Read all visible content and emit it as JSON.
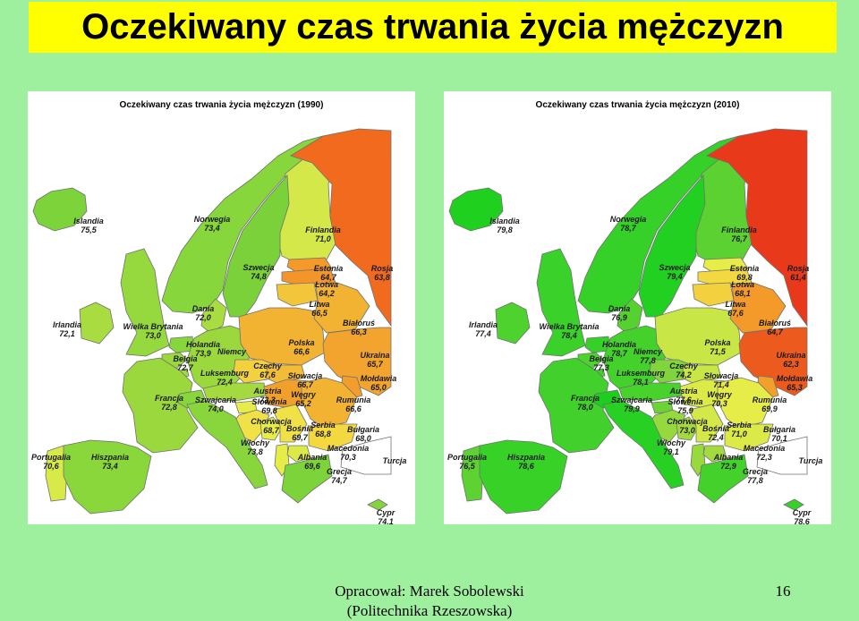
{
  "header": {
    "title": "Oczekiwany czas trwania życia mężczyzn"
  },
  "maps": [
    {
      "title": "Oczekiwany czas trwania życia mężczyzn (1990)",
      "countries": [
        {
          "name": "Islandia",
          "value": "75,5",
          "color": "#7cd33a"
        },
        {
          "name": "Norwegia",
          "value": "73,4",
          "color": "#86d63c"
        },
        {
          "name": "Finlandia",
          "value": "71,0",
          "color": "#d4e84a"
        },
        {
          "name": "Szwecja",
          "value": "74,8",
          "color": "#7ad13a"
        },
        {
          "name": "Estonia",
          "value": "64,7",
          "color": "#f39a2a"
        },
        {
          "name": "Łotwa",
          "value": "64,2",
          "color": "#f3952a"
        },
        {
          "name": "Litwa",
          "value": "66,5",
          "color": "#f2c53a"
        },
        {
          "name": "Rosja",
          "value": "63,8",
          "color": "#f26a1e"
        },
        {
          "name": "Dania",
          "value": "72,0",
          "color": "#a8dc40"
        },
        {
          "name": "Irlandia",
          "value": "72,1",
          "color": "#a8dc40"
        },
        {
          "name": "Wielka Brytania",
          "value": "73,0",
          "color": "#96d93e"
        },
        {
          "name": "Holandia",
          "value": "73,9",
          "color": "#86d63c"
        },
        {
          "name": "Niemcy",
          "value": "",
          "color": "#9ad83e"
        },
        {
          "name": "Belgia",
          "value": "72,7",
          "color": "#9ad83e"
        },
        {
          "name": "Luksemburg",
          "value": "72,4",
          "color": "#a4da40"
        },
        {
          "name": "Polska",
          "value": "66,6",
          "color": "#f2b232"
        },
        {
          "name": "Białoruś",
          "value": "66,3",
          "color": "#f2b232"
        },
        {
          "name": "Ukraina",
          "value": "65,7",
          "color": "#f2a42e"
        },
        {
          "name": "Czechy",
          "value": "67,6",
          "color": "#f3d03e"
        },
        {
          "name": "Słowacja",
          "value": "66,7",
          "color": "#f2bc38"
        },
        {
          "name": "Mołdawia",
          "value": "65,0",
          "color": "#f29e2c"
        },
        {
          "name": "Austria",
          "value": "72,3",
          "color": "#a4da40"
        },
        {
          "name": "Węgry",
          "value": "65,2",
          "color": "#f2a02c"
        },
        {
          "name": "Francja",
          "value": "72,8",
          "color": "#9ad83e"
        },
        {
          "name": "Szwajcaria",
          "value": "74,0",
          "color": "#86d63c"
        },
        {
          "name": "Słowenia",
          "value": "69,8",
          "color": "#e6ec48"
        },
        {
          "name": "Rumunia",
          "value": "66,6",
          "color": "#f2b232"
        },
        {
          "name": "Chorwacja",
          "value": "68,7",
          "color": "#f0e246"
        },
        {
          "name": "Bośnia",
          "value": "69,7",
          "color": "#e6ec48"
        },
        {
          "name": "Serbia",
          "value": "68,8",
          "color": "#f0e246"
        },
        {
          "name": "Bułgaria",
          "value": "68,0",
          "color": "#f3d840"
        },
        {
          "name": "Włochy",
          "value": "73,8",
          "color": "#88d63c"
        },
        {
          "name": "Albania",
          "value": "69,6",
          "color": "#e6ec48"
        },
        {
          "name": "Macedonia",
          "value": "70,3",
          "color": "#dcea48"
        },
        {
          "name": "Portugalia",
          "value": "70,6",
          "color": "#d8ea48"
        },
        {
          "name": "Hiszpania",
          "value": "73,4",
          "color": "#8ad73c"
        },
        {
          "name": "Grecja",
          "value": "74,7",
          "color": "#7cd33a"
        },
        {
          "name": "Turcja",
          "value": "",
          "color": "#ffffff"
        },
        {
          "name": "Cypr",
          "value": "74,1",
          "color": "#84d53c"
        }
      ]
    },
    {
      "title": "Oczekiwany czas trwania życia mężczyzn (2010)",
      "countries": [
        {
          "name": "Islandia",
          "value": "79,8",
          "color": "#1fd01f"
        },
        {
          "name": "Norwegia",
          "value": "78,7",
          "color": "#36d128"
        },
        {
          "name": "Finlandia",
          "value": "76,7",
          "color": "#5cd232"
        },
        {
          "name": "Szwecja",
          "value": "79,4",
          "color": "#22d022"
        },
        {
          "name": "Estonia",
          "value": "69,8",
          "color": "#e6ec48"
        },
        {
          "name": "Łotwa",
          "value": "68,1",
          "color": "#f3d840"
        },
        {
          "name": "Litwa",
          "value": "67,6",
          "color": "#f3d03e"
        },
        {
          "name": "Rosja",
          "value": "61,4",
          "color": "#e83a1a"
        },
        {
          "name": "Dania",
          "value": "76,9",
          "color": "#56d230"
        },
        {
          "name": "Irlandia",
          "value": "77,4",
          "color": "#4ed22e"
        },
        {
          "name": "Wielka Brytania",
          "value": "78,4",
          "color": "#3ad12a"
        },
        {
          "name": "Holandia",
          "value": "78,7",
          "color": "#36d128"
        },
        {
          "name": "Niemcy",
          "value": "77,8",
          "color": "#44d12c"
        },
        {
          "name": "Belgia",
          "value": "77,3",
          "color": "#4ed22e"
        },
        {
          "name": "Luksemburg",
          "value": "78,1",
          "color": "#40d12c"
        },
        {
          "name": "Polska",
          "value": "71,5",
          "color": "#c8e646"
        },
        {
          "name": "Białoruś",
          "value": "64,7",
          "color": "#f39a2a"
        },
        {
          "name": "Ukraina",
          "value": "62,3",
          "color": "#ec5a1e"
        },
        {
          "name": "Czechy",
          "value": "74,2",
          "color": "#80d43c"
        },
        {
          "name": "Słowacja",
          "value": "71,4",
          "color": "#c8e646"
        },
        {
          "name": "Mołdawia",
          "value": "65,3",
          "color": "#f2a02c"
        },
        {
          "name": "Austria",
          "value": "77,6",
          "color": "#48d22c"
        },
        {
          "name": "Węgry",
          "value": "70,3",
          "color": "#dcea48"
        },
        {
          "name": "Francja",
          "value": "78,0",
          "color": "#42d12c"
        },
        {
          "name": "Szwajcaria",
          "value": "79,9",
          "color": "#1ccf1c"
        },
        {
          "name": "Słowenia",
          "value": "75,9",
          "color": "#6cd336"
        },
        {
          "name": "Rumunia",
          "value": "69,9",
          "color": "#e6ec48"
        },
        {
          "name": "Chorwacja",
          "value": "73,0",
          "color": "#96d93e"
        },
        {
          "name": "Bośnia",
          "value": "72,4",
          "color": "#a4da40"
        },
        {
          "name": "Serbia",
          "value": "71,0",
          "color": "#d4e84a"
        },
        {
          "name": "Bułgaria",
          "value": "70,1",
          "color": "#dcea48"
        },
        {
          "name": "Włochy",
          "value": "79,1",
          "color": "#28d024"
        },
        {
          "name": "Albania",
          "value": "72,9",
          "color": "#98d93e"
        },
        {
          "name": "Macedonia",
          "value": "72,3",
          "color": "#a4da40"
        },
        {
          "name": "Portugalia",
          "value": "76,5",
          "color": "#5ed232"
        },
        {
          "name": "Hiszpania",
          "value": "78,6",
          "color": "#38d128"
        },
        {
          "name": "Grecja",
          "value": "77,8",
          "color": "#44d12c"
        },
        {
          "name": "Turcja",
          "value": "",
          "color": "#ffffff"
        },
        {
          "name": "Cypr",
          "value": "78,6",
          "color": "#38d128"
        }
      ]
    }
  ],
  "footer": {
    "author": "Opracował: Marek Sobolewski",
    "institution": "(Politechnika Rzeszowska)",
    "page_number": "16"
  }
}
